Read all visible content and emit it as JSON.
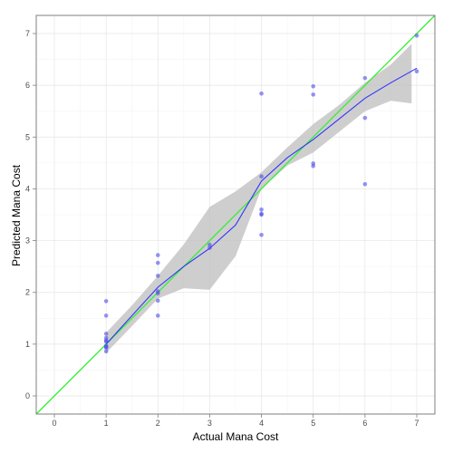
{
  "chart_data": {
    "type": "scatter",
    "title": "",
    "xlabel": "Actual Mana Cost",
    "ylabel": "Predicted Mana Cost",
    "xlim": [
      -0.35,
      7.35
    ],
    "ylim": [
      -0.35,
      7.35
    ],
    "x_ticks": [
      0,
      1,
      2,
      3,
      4,
      5,
      6,
      7
    ],
    "y_ticks": [
      0,
      1,
      2,
      3,
      4,
      5,
      6,
      7
    ],
    "x_tick_labels": [
      "0",
      "1",
      "2",
      "3",
      "4",
      "5",
      "6",
      "7"
    ],
    "y_tick_labels": [
      "0",
      "1",
      "2",
      "3",
      "4",
      "5",
      "6",
      "7"
    ],
    "grid": true,
    "series": [
      {
        "kind": "points",
        "color": "#4b4bea",
        "x": [
          1,
          1,
          1,
          1,
          1,
          1,
          1,
          1,
          1,
          1,
          2,
          2,
          2,
          2,
          2,
          2,
          2,
          3,
          3,
          4,
          4,
          4,
          4,
          4,
          4,
          5,
          5,
          5,
          5,
          6,
          6,
          6,
          7,
          7
        ],
        "y": [
          1.83,
          1.55,
          1.2,
          1.12,
          1.07,
          1.05,
          0.97,
          0.95,
          0.93,
          0.86,
          2.72,
          2.57,
          2.32,
          2.02,
          1.98,
          1.84,
          1.55,
          2.92,
          2.86,
          5.84,
          4.24,
          3.6,
          3.52,
          3.11,
          3.5,
          5.98,
          5.82,
          4.49,
          4.44,
          6.14,
          5.37,
          4.09,
          6.96,
          6.27
        ]
      },
      {
        "kind": "smooth",
        "color": "#3333ff",
        "x": [
          1.0,
          1.5,
          2.0,
          2.5,
          3.0,
          3.5,
          4.0,
          4.5,
          5.0,
          5.5,
          6.0,
          6.5,
          7.0
        ],
        "y": [
          1.0,
          1.55,
          2.1,
          2.5,
          2.85,
          3.3,
          4.15,
          4.6,
          4.95,
          5.35,
          5.75,
          6.05,
          6.33
        ]
      },
      {
        "kind": "confidence-band",
        "color": "#bebebe",
        "x": [
          1.0,
          1.5,
          2.0,
          2.5,
          3.0,
          3.5,
          4.0,
          4.5,
          5.0,
          5.5,
          6.0,
          6.5,
          6.9
        ],
        "y_low": [
          0.83,
          1.35,
          1.88,
          2.08,
          2.05,
          2.7,
          4.0,
          4.45,
          4.7,
          5.1,
          5.5,
          5.7,
          5.65
        ],
        "y_high": [
          1.22,
          1.75,
          2.32,
          2.93,
          3.65,
          3.95,
          4.32,
          4.8,
          5.25,
          5.62,
          6.05,
          6.4,
          6.8
        ]
      },
      {
        "kind": "reference-line",
        "color": "#33ee33",
        "x": [
          -0.35,
          7.35
        ],
        "y": [
          -0.35,
          7.35
        ]
      }
    ]
  }
}
